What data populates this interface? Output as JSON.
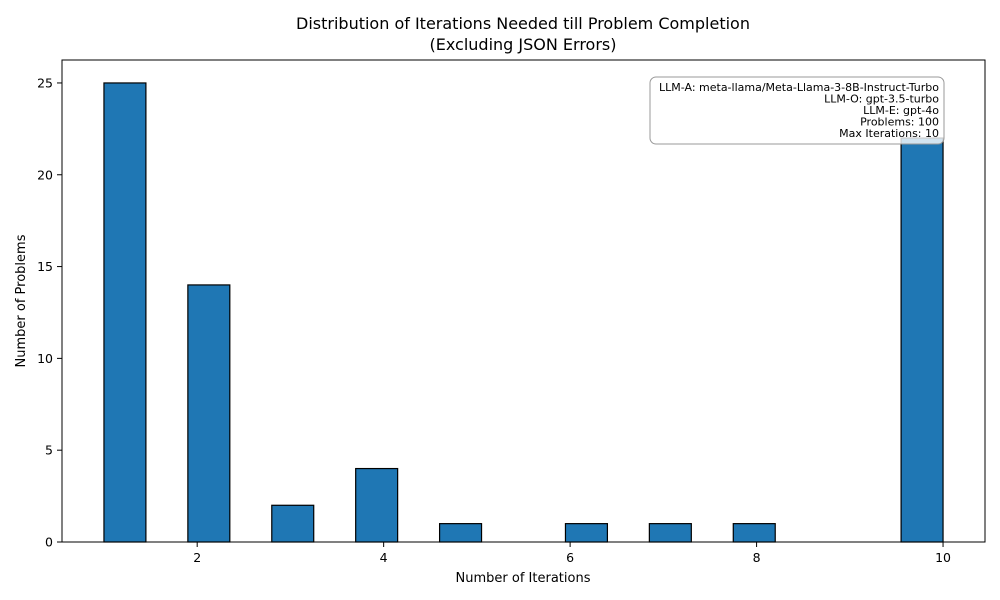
{
  "chart_data": {
    "type": "bar",
    "title": "Distribution of Iterations Needed till Problem Completion",
    "subtitle": "(Excluding JSON Errors)",
    "xlabel": "Number of Iterations",
    "ylabel": "Number of Problems",
    "bars": [
      {
        "x_start": 1.0,
        "x_end": 1.45,
        "value": 25
      },
      {
        "x_start": 1.9,
        "x_end": 2.35,
        "value": 14
      },
      {
        "x_start": 2.8,
        "x_end": 3.25,
        "value": 2
      },
      {
        "x_start": 3.7,
        "x_end": 4.15,
        "value": 4
      },
      {
        "x_start": 4.6,
        "x_end": 5.05,
        "value": 1
      },
      {
        "x_start": 5.95,
        "x_end": 6.4,
        "value": 1
      },
      {
        "x_start": 6.85,
        "x_end": 7.3,
        "value": 1
      },
      {
        "x_start": 7.75,
        "x_end": 8.2,
        "value": 1
      },
      {
        "x_start": 9.55,
        "x_end": 10.0,
        "value": 22
      }
    ],
    "xlim": [
      0.55,
      10.45
    ],
    "ylim": [
      0,
      26.25
    ],
    "xticks": [
      2,
      4,
      6,
      8,
      10
    ],
    "yticks": [
      0,
      5,
      10,
      15,
      20,
      25
    ],
    "bar_color": "#1f77b4",
    "edge_color": "#000000",
    "grid": false,
    "annotation": {
      "placement": "top-right",
      "lines": [
        "LLM-A: meta-llama/Meta-Llama-3-8B-Instruct-Turbo",
        "LLM-O: gpt-3.5-turbo",
        "LLM-E: gpt-4o",
        "Problems: 100",
        "Max Iterations: 10"
      ]
    }
  }
}
